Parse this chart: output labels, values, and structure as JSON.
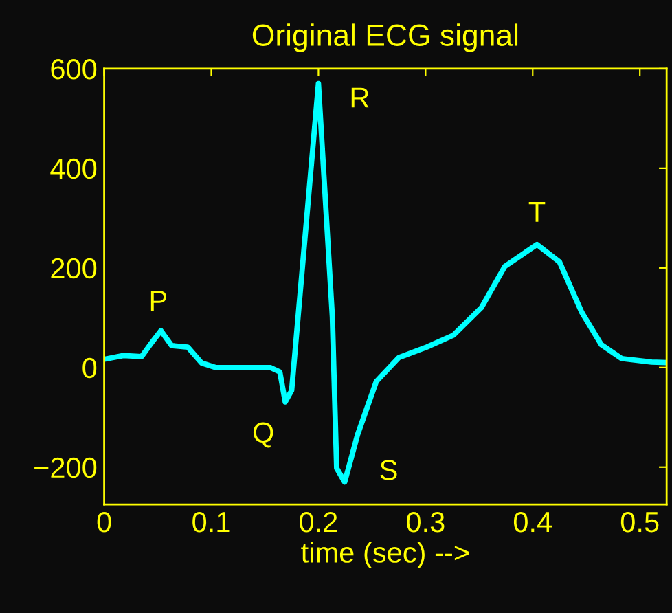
{
  "chart_data": {
    "type": "line",
    "title": "Original ECG signal",
    "xlabel": "time (sec) -->",
    "x": [
      0.001,
      0.018,
      0.035,
      0.043,
      0.053,
      0.063,
      0.078,
      0.091,
      0.104,
      0.155,
      0.164,
      0.169,
      0.175,
      0.2,
      0.213,
      0.217,
      0.2245,
      0.2365,
      0.254,
      0.275,
      0.301,
      0.326,
      0.352,
      0.374,
      0.404,
      0.425,
      0.446,
      0.464,
      0.483,
      0.511,
      0.525
    ],
    "series": [
      {
        "color": "#00ffff",
        "values": [
          17,
          24,
          22,
          46,
          74,
          44,
          41,
          9,
          0,
          0,
          -9,
          -69,
          -46,
          570,
          101,
          -202,
          -230,
          -135,
          -28,
          20,
          41,
          65,
          120,
          203,
          247,
          212,
          110,
          46,
          18,
          11,
          10
        ]
      }
    ],
    "annotations": [
      {
        "text": "P",
        "x": 0.053,
        "y": 74
      },
      {
        "text": "R",
        "x": 0.2,
        "y": 570
      },
      {
        "text": "Q",
        "x": 0.169,
        "y": -69
      },
      {
        "text": "S",
        "x": 0.2245,
        "y": -230
      },
      {
        "text": "T",
        "x": 0.404,
        "y": 247
      }
    ],
    "xlim": [
      0,
      0.525
    ],
    "ylim": [
      -275,
      600
    ],
    "xticks": [
      0,
      0.1,
      0.2,
      0.3,
      0.4,
      0.5
    ],
    "yticks": [
      -200,
      0,
      200,
      400,
      600
    ],
    "grid": false,
    "marker": "none",
    "line_style": "solid"
  }
}
